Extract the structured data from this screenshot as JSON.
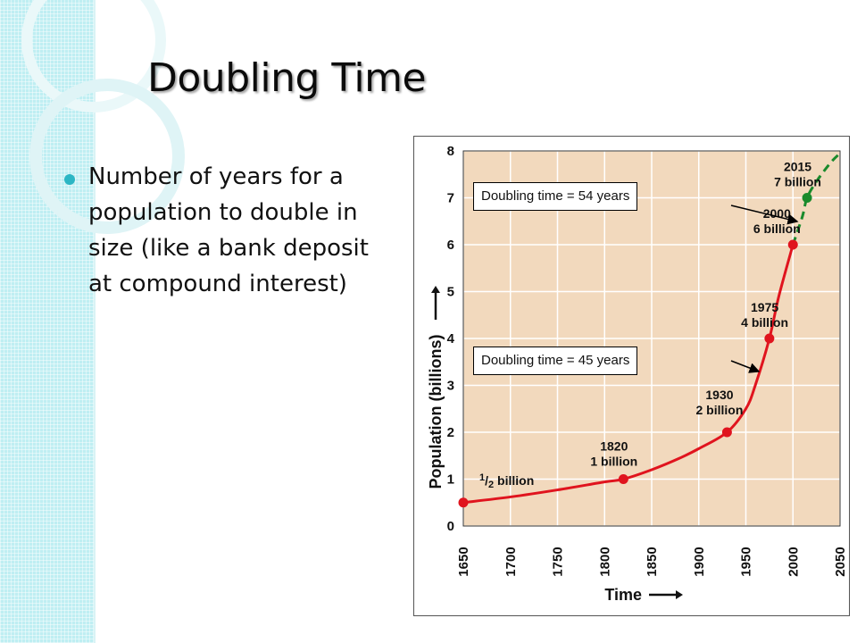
{
  "slide": {
    "title": "Doubling Time",
    "bullet": "Number of years for a population to double in size (like a bank deposit at compound interest)"
  },
  "colors": {
    "band": "#bfeef2",
    "plot_background": "#f2d9bd",
    "grid": "#ffffff",
    "curve": "#e0141e",
    "projection": "#1a8a2c",
    "bullet": "#2cb6c4"
  },
  "callouts": [
    {
      "id": "callout-54",
      "text": "Doubling time = 54 years"
    },
    {
      "id": "callout-45",
      "text": "Doubling time = 45 years"
    }
  ],
  "chart_data": {
    "type": "line",
    "xlabel": "Time",
    "ylabel": "Population (billions)",
    "xlim": [
      1650,
      2050
    ],
    "ylim": [
      0,
      8
    ],
    "xticks": [
      "1650",
      "1700",
      "1750",
      "1800",
      "1850",
      "1900",
      "1950",
      "2000",
      "2050"
    ],
    "yticks": [
      "0",
      "1",
      "2",
      "3",
      "4",
      "5",
      "6",
      "7",
      "8"
    ],
    "grid": true,
    "series": [
      {
        "style": "solid",
        "color": "#e0141e",
        "x": [
          1650,
          1700,
          1750,
          1800,
          1820,
          1850,
          1880,
          1900,
          1930,
          1950,
          1960,
          1975,
          1985,
          2000
        ],
        "y": [
          0.5,
          0.62,
          0.77,
          0.94,
          1.0,
          1.2,
          1.45,
          1.65,
          2.0,
          2.5,
          3.0,
          4.0,
          4.9,
          6.0
        ]
      },
      {
        "style": "dashed",
        "color": "#1a8a2c",
        "x": [
          2000,
          2010,
          2015,
          2025,
          2040,
          2050
        ],
        "y": [
          6.0,
          6.6,
          7.0,
          7.35,
          7.75,
          7.95
        ]
      }
    ],
    "points": [
      {
        "x": 1650,
        "y": 0.5,
        "color": "#e0141e"
      },
      {
        "x": 1820,
        "y": 1.0,
        "color": "#e0141e"
      },
      {
        "x": 1930,
        "y": 2.0,
        "color": "#e0141e"
      },
      {
        "x": 1975,
        "y": 4.0,
        "color": "#e0141e"
      },
      {
        "x": 2000,
        "y": 6.0,
        "color": "#e0141e"
      },
      {
        "x": 2015,
        "y": 7.0,
        "color": "#1a8a2c"
      }
    ],
    "annotations": [
      {
        "id": "half-billion",
        "lines": [
          "1/2 billion"
        ]
      },
      {
        "id": "y1820",
        "lines": [
          "1820",
          "1 billion"
        ]
      },
      {
        "id": "y1930",
        "lines": [
          "1930",
          "2 billion"
        ]
      },
      {
        "id": "y1975",
        "lines": [
          "1975",
          "4 billion"
        ]
      },
      {
        "id": "y2000",
        "lines": [
          "2000",
          "6 billion"
        ]
      },
      {
        "id": "y2015",
        "lines": [
          "2015",
          "7 billion"
        ]
      }
    ]
  }
}
